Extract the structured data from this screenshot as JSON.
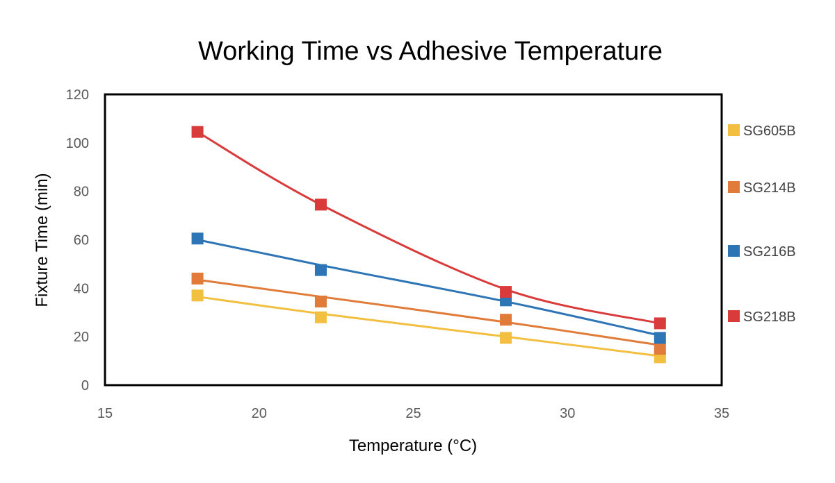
{
  "chart_data": {
    "type": "line",
    "title": "Working Time vs Adhesive Temperature",
    "xlabel": "Temperature (°C)",
    "ylabel": "Fixture Time (min)",
    "xlim": [
      15,
      35
    ],
    "ylim": [
      0,
      120
    ],
    "x_ticks": [
      "15",
      "20",
      "25",
      "30",
      "35"
    ],
    "y_ticks": [
      "0",
      "20",
      "40",
      "60",
      "80",
      "100",
      "120"
    ],
    "x": [
      18,
      22,
      28,
      33
    ],
    "grid": false,
    "legend_position": "right",
    "series": [
      {
        "name": "SG605B",
        "color": "#F2BF40",
        "values": [
          37,
          28,
          19.5,
          11.5
        ],
        "curve": [
          36.5,
          29.5,
          20,
          12
        ]
      },
      {
        "name": "SG214B",
        "color": "#E07B39",
        "values": [
          44,
          34.5,
          27,
          15
        ],
        "curve": [
          43.5,
          36.5,
          26,
          16.5
        ]
      },
      {
        "name": "SG216B",
        "color": "#2E75B6",
        "values": [
          60.5,
          47.5,
          35,
          19.5
        ],
        "curve": [
          60,
          49.5,
          34.5,
          20.5
        ]
      },
      {
        "name": "SG218B",
        "color": "#D93A3A",
        "values": [
          104.5,
          74.5,
          38.5,
          25.5
        ],
        "curve": [
          104.5,
          74.5,
          39.5,
          25.5
        ]
      }
    ]
  }
}
